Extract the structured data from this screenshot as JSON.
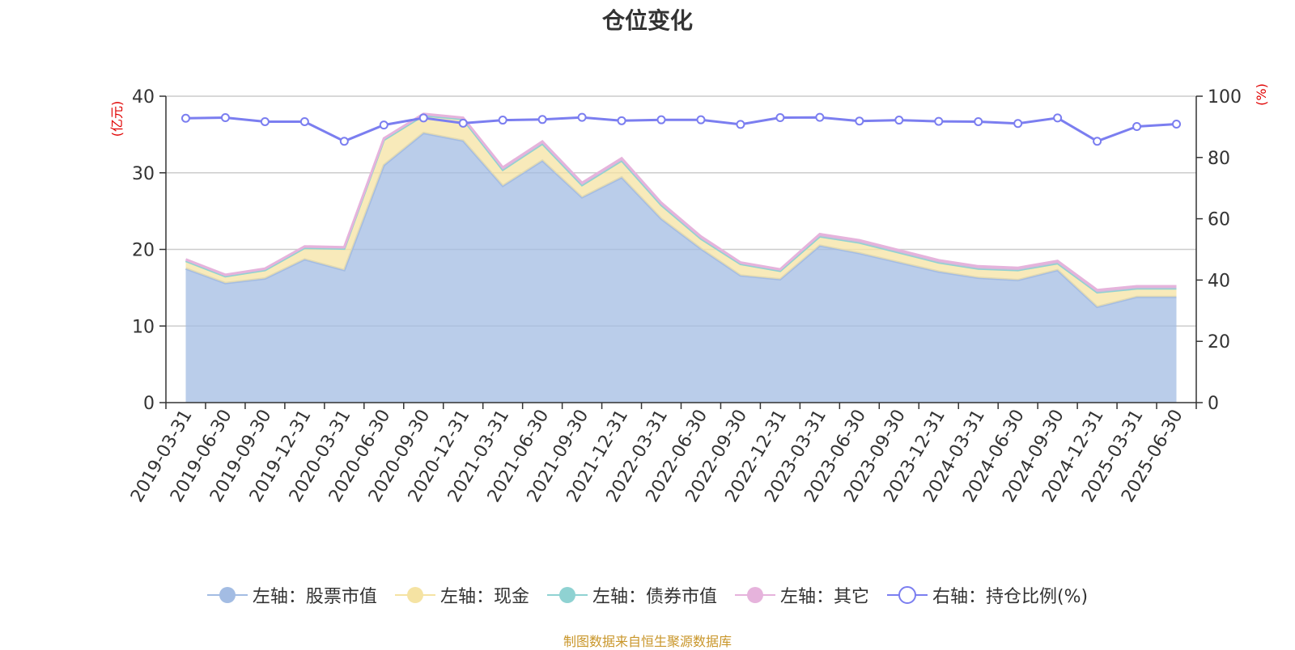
{
  "chart_data": {
    "type": "area",
    "title": "仓位变化",
    "ylabel_left": "(亿元)",
    "ylabel_right": "(%)",
    "ylim_left": [
      0,
      40
    ],
    "ylim_right": [
      0,
      100
    ],
    "yticks_left": [
      "0",
      "10",
      "20",
      "30",
      "40"
    ],
    "yticks_right": [
      "0",
      "20",
      "40",
      "60",
      "80",
      "100"
    ],
    "grid": true,
    "stacked": true,
    "legend_position": "bottom-center",
    "categories": [
      "2019-03-31",
      "2019-06-30",
      "2019-09-30",
      "2019-12-31",
      "2020-03-31",
      "2020-06-30",
      "2020-09-30",
      "2020-12-31",
      "2021-03-31",
      "2021-06-30",
      "2021-09-30",
      "2021-12-31",
      "2022-03-31",
      "2022-06-30",
      "2022-09-30",
      "2022-12-31",
      "2023-03-31",
      "2023-06-30",
      "2023-09-30",
      "2023-12-31",
      "2024-03-31",
      "2024-06-30",
      "2024-09-30",
      "2024-12-31",
      "2025-03-31",
      "2025-06-30"
    ],
    "series": [
      {
        "name": "左轴：股票市值",
        "axis": "left",
        "color": "#a3bce3",
        "values": [
          17.5,
          15.6,
          16.2,
          18.7,
          17.3,
          31.0,
          35.2,
          34.2,
          28.3,
          31.6,
          26.8,
          29.4,
          24.0,
          20.1,
          16.6,
          16.1,
          20.5,
          19.5,
          18.3,
          17.1,
          16.3,
          16.0,
          17.3,
          12.5,
          13.8,
          13.8
        ]
      },
      {
        "name": "左轴：现金",
        "axis": "left",
        "color": "#f5e3a3",
        "values": [
          1.0,
          0.9,
          1.1,
          1.5,
          2.8,
          3.3,
          2.3,
          2.8,
          2.1,
          2.2,
          1.6,
          2.2,
          1.8,
          1.3,
          1.5,
          1.1,
          1.2,
          1.4,
          1.3,
          1.2,
          1.2,
          1.3,
          0.9,
          1.9,
          1.1,
          1.1
        ]
      },
      {
        "name": "左轴：债券市值",
        "axis": "left",
        "color": "#8fd2d2",
        "values": [
          0,
          0,
          0,
          0,
          0,
          0,
          0,
          0,
          0,
          0,
          0,
          0,
          0,
          0,
          0,
          0,
          0,
          0,
          0,
          0,
          0,
          0,
          0,
          0,
          0,
          0
        ]
      },
      {
        "name": "左轴：其它",
        "axis": "left",
        "color": "#e6b3dc",
        "values": [
          0.2,
          0.2,
          0.2,
          0.2,
          0.2,
          0.2,
          0.2,
          0.2,
          0.3,
          0.3,
          0.3,
          0.3,
          0.3,
          0.3,
          0.2,
          0.2,
          0.3,
          0.3,
          0.3,
          0.3,
          0.3,
          0.3,
          0.3,
          0.3,
          0.3,
          0.3
        ]
      },
      {
        "name": "右轴：持仓比例(%)",
        "axis": "right",
        "color": "#7b7ef0",
        "values": [
          92.8,
          93.0,
          91.7,
          91.7,
          85.3,
          90.6,
          92.9,
          91.2,
          92.2,
          92.4,
          93.1,
          92.0,
          92.3,
          92.3,
          90.8,
          93.0,
          93.1,
          91.9,
          92.2,
          91.8,
          91.7,
          91.1,
          92.9,
          85.3,
          90.1,
          90.9
        ]
      }
    ]
  },
  "source": "制图数据来自恒生聚源数据库"
}
